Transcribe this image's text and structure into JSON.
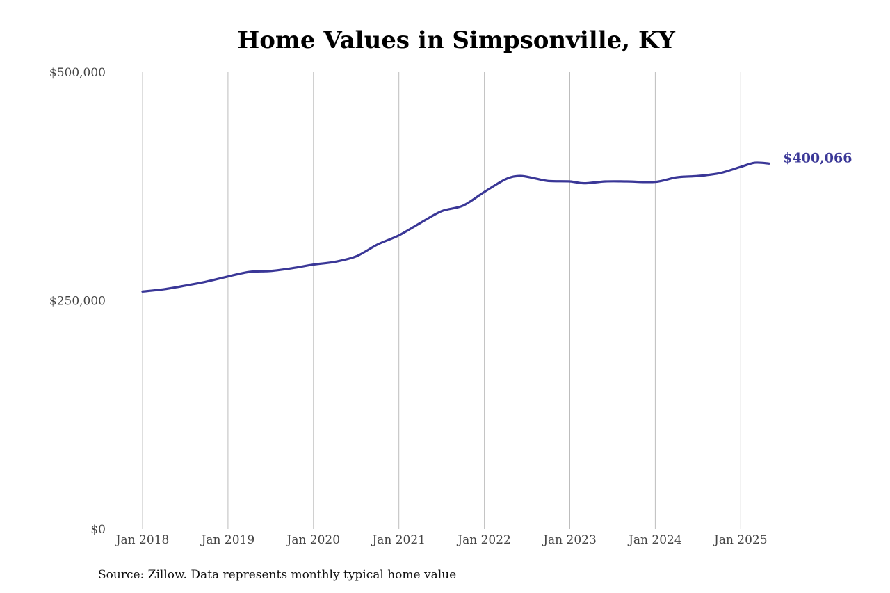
{
  "colors": {
    "line": "#3a3797",
    "grid": "#bdbdbd",
    "text": "#444444"
  },
  "source": "Source: Zillow. Data represents monthly typical home value",
  "chart_data": {
    "type": "line",
    "title": "Home Values in Simpsonville, KY",
    "xlabel": "",
    "ylabel": "",
    "ylim": [
      0,
      500000
    ],
    "xlim": [
      "2018-01",
      "2025-05"
    ],
    "yticks": [
      {
        "value": 0,
        "label": "$0"
      },
      {
        "value": 250000,
        "label": "$250,000"
      },
      {
        "value": 500000,
        "label": "$500,000"
      }
    ],
    "xticks": [
      {
        "value": "2018-01",
        "label": "Jan 2018"
      },
      {
        "value": "2019-01",
        "label": "Jan 2019"
      },
      {
        "value": "2020-01",
        "label": "Jan 2020"
      },
      {
        "value": "2021-01",
        "label": "Jan 2021"
      },
      {
        "value": "2022-01",
        "label": "Jan 2022"
      },
      {
        "value": "2023-01",
        "label": "Jan 2023"
      },
      {
        "value": "2024-01",
        "label": "Jan 2024"
      },
      {
        "value": "2025-01",
        "label": "Jan 2025"
      }
    ],
    "grid": "vertical at x ticks",
    "end_label": "$400,066",
    "series": [
      {
        "points": [
          {
            "x": "2018-01",
            "y": 260000
          },
          {
            "x": "2018-04",
            "y": 262500
          },
          {
            "x": "2018-07",
            "y": 266500
          },
          {
            "x": "2018-10",
            "y": 271000
          },
          {
            "x": "2019-01",
            "y": 276500
          },
          {
            "x": "2019-04",
            "y": 281500
          },
          {
            "x": "2019-07",
            "y": 282500
          },
          {
            "x": "2019-10",
            "y": 285500
          },
          {
            "x": "2020-01",
            "y": 289500
          },
          {
            "x": "2020-04",
            "y": 292500
          },
          {
            "x": "2020-07",
            "y": 298500
          },
          {
            "x": "2020-10",
            "y": 311500
          },
          {
            "x": "2021-01",
            "y": 321500
          },
          {
            "x": "2021-04",
            "y": 335000
          },
          {
            "x": "2021-07",
            "y": 348000
          },
          {
            "x": "2021-10",
            "y": 354000
          },
          {
            "x": "2022-01",
            "y": 369000
          },
          {
            "x": "2022-04",
            "y": 383000
          },
          {
            "x": "2022-06",
            "y": 386500
          },
          {
            "x": "2022-08",
            "y": 384000
          },
          {
            "x": "2022-10",
            "y": 381000
          },
          {
            "x": "2023-01",
            "y": 380500
          },
          {
            "x": "2023-03",
            "y": 378500
          },
          {
            "x": "2023-06",
            "y": 380500
          },
          {
            "x": "2023-09",
            "y": 380500
          },
          {
            "x": "2024-01",
            "y": 380000
          },
          {
            "x": "2024-04",
            "y": 385000
          },
          {
            "x": "2024-07",
            "y": 386500
          },
          {
            "x": "2024-10",
            "y": 389500
          },
          {
            "x": "2025-01",
            "y": 396500
          },
          {
            "x": "2025-03",
            "y": 401000
          },
          {
            "x": "2025-05",
            "y": 400066
          }
        ]
      }
    ]
  }
}
